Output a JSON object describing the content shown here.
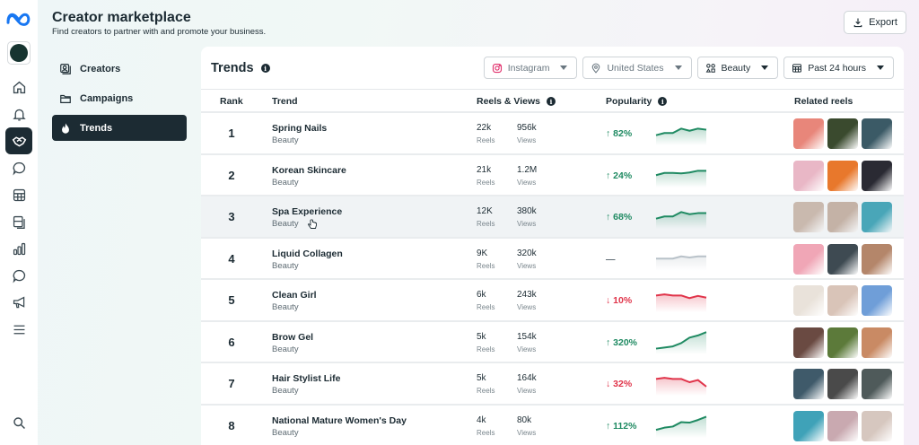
{
  "header": {
    "title": "Creator marketplace",
    "subtitle": "Find creators to partner with and promote your business.",
    "export_label": "Export"
  },
  "rail": {
    "items": [
      "home-icon",
      "bell-icon",
      "handshake-icon",
      "chat-icon",
      "table-icon",
      "pages-icon",
      "bar-chart-icon",
      "message-icon",
      "megaphone-icon",
      "menu-icon"
    ],
    "active": "handshake-icon"
  },
  "subnav": {
    "items": [
      {
        "label": "Creators",
        "icon": "creators-icon"
      },
      {
        "label": "Campaigns",
        "icon": "folder-icon"
      },
      {
        "label": "Trends",
        "icon": "flame-icon",
        "active": true
      }
    ]
  },
  "card": {
    "title": "Trends",
    "filters": [
      {
        "label": "Instagram",
        "icon": "instagram-icon"
      },
      {
        "label": "United States",
        "icon": "location-icon"
      },
      {
        "label": "Beauty",
        "icon": "category-icon"
      },
      {
        "label": "Past 24 hours",
        "icon": "calendar-icon"
      }
    ],
    "columns": {
      "rank": "Rank",
      "trend": "Trend",
      "reels_views": "Reels & Views",
      "popularity": "Popularity",
      "related": "Related reels"
    },
    "reels_label": "Reels",
    "views_label": "Views"
  },
  "colors": {
    "up": "#1f8a62",
    "down": "#e0344a",
    "flat": "#b9c2c9",
    "dark": "#1c2b33"
  },
  "rows": [
    {
      "rank": "1",
      "name": "Spring Nails",
      "category": "Beauty",
      "reels": "22k",
      "views": "956k",
      "change": "↑ 82%",
      "dir": "up",
      "spark": [
        3,
        4,
        4,
        6,
        5,
        6,
        5.5
      ],
      "thumbs": [
        "#e8867a",
        "#3a4a2e",
        "#3b5a66"
      ]
    },
    {
      "rank": "2",
      "name": "Korean Skincare",
      "category": "Beauty",
      "reels": "21k",
      "views": "1.2M",
      "change": "↑ 24%",
      "dir": "up",
      "spark": [
        4,
        5,
        5,
        4.8,
        5.2,
        6,
        6
      ],
      "thumbs": [
        "#e9b7c6",
        "#e8782c",
        "#2a2a33"
      ]
    },
    {
      "rank": "3",
      "name": "Spa Experience",
      "category": "Beauty",
      "reels": "12K",
      "views": "380k",
      "change": "↑ 68%",
      "dir": "up",
      "spark": [
        3,
        4,
        4,
        6,
        5,
        5.5,
        5.5
      ],
      "thumbs": [
        "#c9b9ae",
        "#c4b2a6",
        "#49a6b8"
      ]
    },
    {
      "rank": "4",
      "name": "Liquid Collagen",
      "category": "Beauty",
      "reels": "9K",
      "views": "320k",
      "change": "—",
      "dir": "flat",
      "spark": [
        4,
        4,
        4,
        5,
        4.5,
        5,
        5
      ],
      "thumbs": [
        "#f0a6b6",
        "#3e4a52",
        "#b4866a"
      ]
    },
    {
      "rank": "5",
      "name": "Clean Girl",
      "category": "Beauty",
      "reels": "6k",
      "views": "243k",
      "change": "↓ 10%",
      "dir": "down",
      "spark": [
        6,
        6.5,
        6,
        6,
        4.8,
        5.8,
        5
      ],
      "thumbs": [
        "#e9e2da",
        "#d9c4b8",
        "#6f9ed8"
      ]
    },
    {
      "rank": "6",
      "name": "Brow Gel",
      "category": "Beauty",
      "reels": "5k",
      "views": "154k",
      "change": "↑ 320%",
      "dir": "up",
      "spark": [
        1,
        1.5,
        2,
        3.5,
        6,
        7,
        8.5
      ],
      "thumbs": [
        "#6a4a42",
        "#5c7a3a",
        "#c98a64"
      ]
    },
    {
      "rank": "7",
      "name": "Hair Stylist Life",
      "category": "Beauty",
      "reels": "5k",
      "views": "164k",
      "change": "↓ 32%",
      "dir": "down",
      "spark": [
        6,
        6.5,
        6,
        6,
        4.5,
        5.5,
        2.5
      ],
      "thumbs": [
        "#3f5a6a",
        "#4a4a4a",
        "#4f5a5a"
      ]
    },
    {
      "rank": "8",
      "name": "National Mature Women's Day",
      "category": "Beauty",
      "reels": "4k",
      "views": "80k",
      "change": "↑ 112%",
      "dir": "up",
      "spark": [
        2,
        3,
        3.5,
        5.5,
        5.3,
        6.5,
        8
      ],
      "thumbs": [
        "#3fa2b8",
        "#c9a9b0",
        "#d6c7bf"
      ]
    }
  ]
}
